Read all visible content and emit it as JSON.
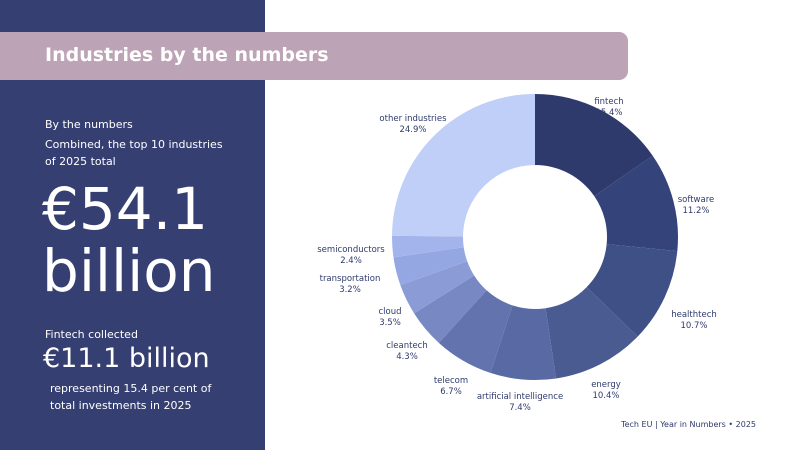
{
  "title": "Industries by the numbers",
  "left": {
    "kicker": "By the numbers",
    "intro_line1": "Combined, the top 10 industries",
    "intro_line2": "of 2025 total",
    "big_line1": "€54.1",
    "big_line2": "billion",
    "sub_intro": "Fintech collected",
    "sub_value": "€11.1 billion",
    "sub_line1": "representing 15.4 per cent of",
    "sub_line2": "total investments in 2025"
  },
  "footer": "Tech EU | Year in Numbers • 2025",
  "chart_data": {
    "type": "pie",
    "style": "donut",
    "categories": [
      "fintech",
      "software",
      "healthtech",
      "energy",
      "artificial intelligence",
      "telecom",
      "cleantech",
      "cloud",
      "transportation",
      "semiconductors",
      "other industries"
    ],
    "values": [
      15.4,
      11.2,
      10.7,
      10.4,
      7.4,
      6.7,
      4.3,
      3.5,
      3.2,
      2.4,
      24.9
    ],
    "value_labels": [
      "15.4%",
      "11.2%",
      "10.7%",
      "10.4%",
      "7.4%",
      "6.7%",
      "4.3%",
      "3.5%",
      "3.2%",
      "2.4%",
      "24.9%"
    ],
    "colors": [
      "#2e3a6c",
      "#34447a",
      "#3f5087",
      "#4a5b92",
      "#5869a3",
      "#6373ad",
      "#7888c2",
      "#8b9bd6",
      "#95a7e2",
      "#a3b4ec",
      "#c0cff7"
    ]
  }
}
